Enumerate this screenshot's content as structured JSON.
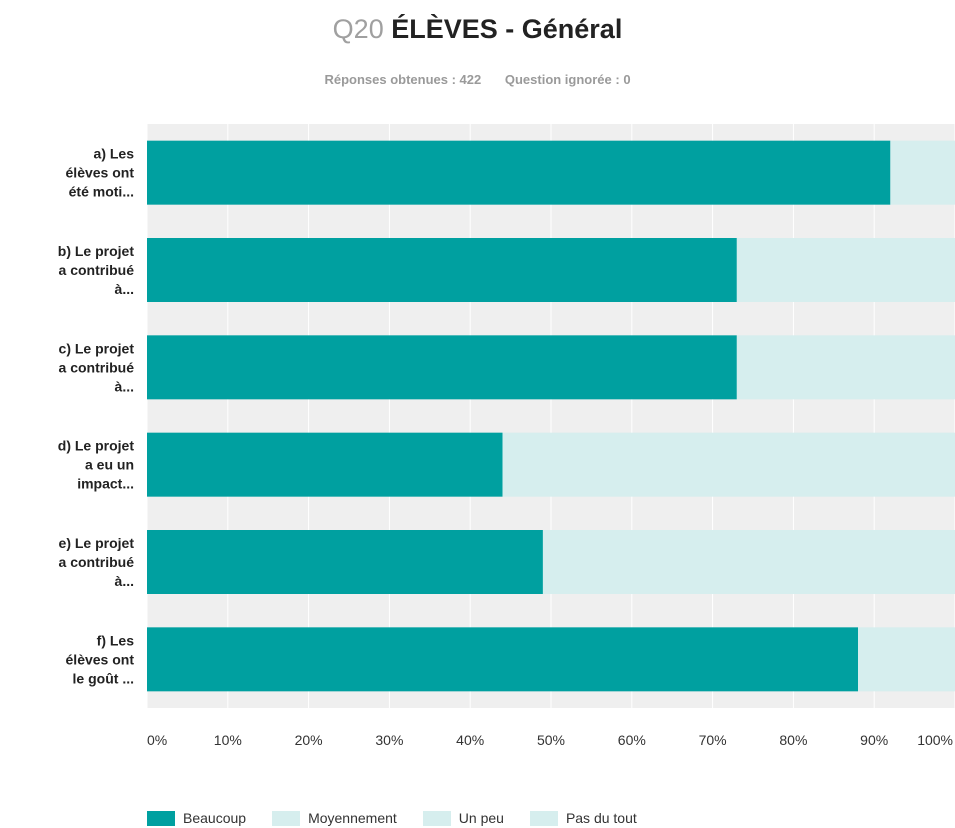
{
  "header": {
    "question_number": "Q20",
    "question_title": "ÉLÈVES - Général",
    "responses": "Réponses obtenues : 422",
    "skipped": "Question ignorée : 0"
  },
  "colors": {
    "plot_background": "#efefef",
    "grid": "#ffffff",
    "beaucoup": "#00a0a0",
    "moyennement": "#d6eeee",
    "un_peu": "#d6eeee",
    "pas_du_tout": "#d6eeee"
  },
  "chart_data": {
    "type": "bar",
    "orientation": "horizontal",
    "stacked": true,
    "categories": [
      "a) Les élèves ont été moti...",
      "b) Le projet a contribué à...",
      "c) Le projet a contribué à...",
      "d) Le projet a eu un impact...",
      "e) Le projet a contribué à...",
      "f) Les élèves ont le goût ..."
    ],
    "series": [
      {
        "name": "Beaucoup",
        "values": [
          92,
          73,
          73,
          44,
          49,
          88
        ]
      },
      {
        "name": "Moyennement",
        "values": [
          8,
          27,
          27,
          56,
          51,
          12
        ]
      },
      {
        "name": "Un peu",
        "values": [
          0,
          0,
          0,
          0,
          0,
          0
        ]
      },
      {
        "name": "Pas du tout",
        "values": [
          0,
          0,
          0,
          0,
          0,
          0
        ]
      }
    ],
    "xlim": [
      0,
      100
    ],
    "xticks": [
      "0%",
      "10%",
      "20%",
      "30%",
      "40%",
      "50%",
      "60%",
      "70%",
      "80%",
      "90%",
      "100%"
    ],
    "grid": true,
    "legend_position": "bottom-left"
  }
}
